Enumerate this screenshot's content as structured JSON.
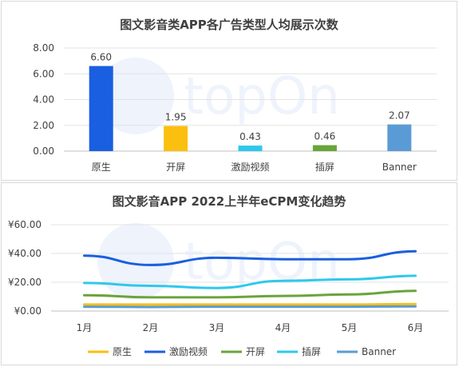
{
  "chart_data": [
    {
      "type": "bar",
      "title": "图文影音类APP各广告类型人均展示次数",
      "categories": [
        "原生",
        "开屏",
        "激励视频",
        "插屏",
        "Banner"
      ],
      "values": [
        6.6,
        1.95,
        0.43,
        0.46,
        2.07
      ],
      "value_labels": [
        "6.60",
        "1.95",
        "0.43",
        "0.46",
        "2.07"
      ],
      "colors": [
        "#1a5fe0",
        "#fbbf0f",
        "#2fc8ec",
        "#6aa43a",
        "#5b9bd5"
      ],
      "yticks": [
        "0.00",
        "2.00",
        "4.00",
        "6.00",
        "8.00"
      ],
      "ylim": [
        0,
        8
      ],
      "grid": true
    },
    {
      "type": "line",
      "title": "图文影音APP 2022上半年eCPM变化趋势",
      "categories": [
        "1月",
        "2月",
        "3月",
        "4月",
        "5月",
        "6月"
      ],
      "series": [
        {
          "name": "原生",
          "color": "#fbbf0f",
          "values": [
            4.5,
            4.5,
            4.5,
            4.5,
            4.5,
            4.8
          ]
        },
        {
          "name": "激励视频",
          "color": "#1a5fe0",
          "values": [
            38.5,
            32,
            37,
            36,
            36,
            41.5
          ]
        },
        {
          "name": "开屏",
          "color": "#6aa43a",
          "values": [
            11,
            9.5,
            9.5,
            10.5,
            11.5,
            14
          ]
        },
        {
          "name": "插屏",
          "color": "#2fc8ec",
          "values": [
            19.5,
            17.5,
            16,
            21,
            22,
            24.5
          ]
        },
        {
          "name": "Banner",
          "color": "#5b9bd5",
          "values": [
            3,
            2.8,
            3,
            3,
            3,
            3.2
          ]
        }
      ],
      "yticks": [
        "¥0.00",
        "¥20.00",
        "¥40.00",
        "¥60.00"
      ],
      "ylim": [
        0,
        60
      ],
      "legend_position": "bottom",
      "grid": true
    }
  ],
  "watermark": "topOn"
}
